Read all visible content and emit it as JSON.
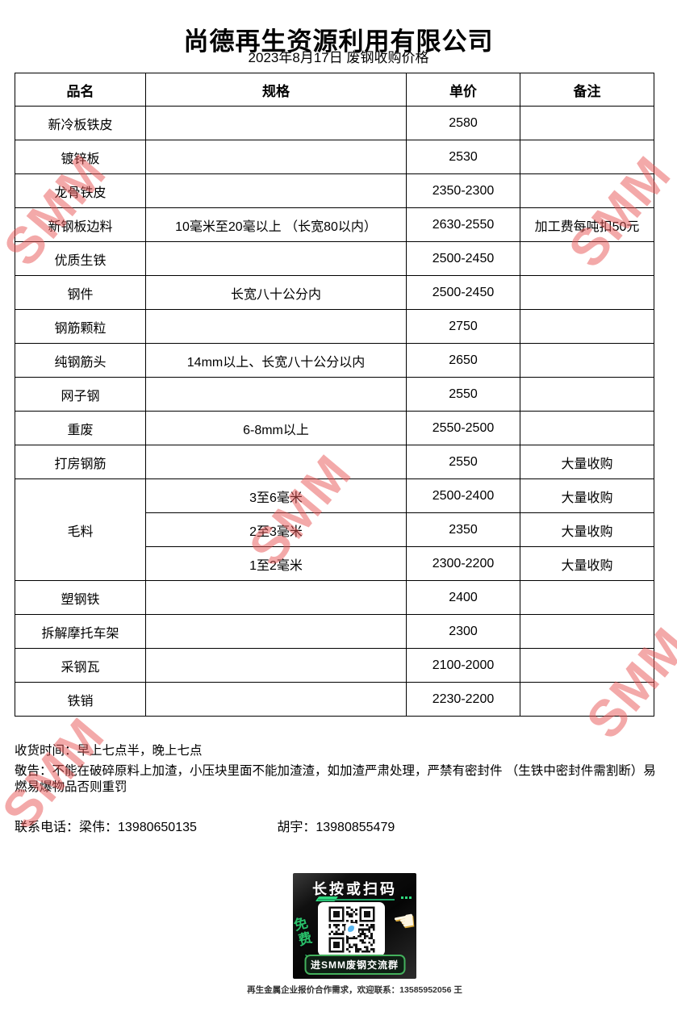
{
  "header": {
    "title": "尚德再生资源利用有限公司",
    "subtitle": "2023年8月17日 废钢收购价格"
  },
  "table": {
    "columns": [
      "品名",
      "规格",
      "单价",
      "备注"
    ],
    "rows": [
      {
        "name": "新冷板铁皮",
        "spec": "",
        "price": "2580",
        "note": ""
      },
      {
        "name": "镀锌板",
        "spec": "",
        "price": "2530",
        "note": ""
      },
      {
        "name": "龙骨铁皮",
        "spec": "",
        "price": "2350-2300",
        "note": ""
      },
      {
        "name": "新钢板边料",
        "spec": "10毫米至20毫以上 （长宽80以内）",
        "price": "2630-2550",
        "note": "加工费每吨扣50元"
      },
      {
        "name": "优质生铁",
        "spec": "",
        "price": "2500-2450",
        "note": ""
      },
      {
        "name": "钢件",
        "spec": "长宽八十公分内",
        "price": "2500-2450",
        "note": ""
      },
      {
        "name": "钢筋颗粒",
        "spec": "",
        "price": "2750",
        "note": ""
      },
      {
        "name": "纯钢筋头",
        "spec": "14mm以上、长宽八十公分以内",
        "price": "2650",
        "note": ""
      },
      {
        "name": "网子钢",
        "spec": "",
        "price": "2550",
        "note": ""
      },
      {
        "name": "重废",
        "spec": "6-8mm以上",
        "price": "2550-2500",
        "note": ""
      },
      {
        "name": "打房钢筋",
        "spec": "",
        "price": "2550",
        "note": "大量收购"
      },
      {
        "name": "毛料",
        "rowspan": 3,
        "spec": "3至6毫米",
        "price": "2500-2400",
        "note": "大量收购"
      },
      {
        "name": null,
        "spec": "2至3毫米",
        "price": "2350",
        "note": "大量收购"
      },
      {
        "name": null,
        "spec": "1至2毫米",
        "price": "2300-2200",
        "note": "大量收购"
      },
      {
        "name": "塑钢铁",
        "spec": "",
        "price": "2400",
        "note": ""
      },
      {
        "name": "拆解摩托车架",
        "spec": "",
        "price": "2300",
        "note": ""
      },
      {
        "name": "采钢瓦",
        "spec": "",
        "price": "2100-2000",
        "note": ""
      },
      {
        "name": "铁销",
        "spec": "",
        "price": "2230-2200",
        "note": ""
      }
    ]
  },
  "footer": {
    "pickup_time": "收货时间：早上七点半，晚上七点",
    "notice": "敬告：不能在破碎原料上加渣，小压块里面不能加渣渣，如加渣严肃处理，严禁有密封件 （生铁中密封件需割断）易燃易爆物品否则重罚",
    "contact_label": "联系电话：",
    "contact1": "梁伟：13980650135",
    "contact2": "胡宇：13980855479"
  },
  "qr_block": {
    "top_text": "长按或扫码",
    "free_label": "免费",
    "bottom_text": "进SMM废钢交流群",
    "caption": "再生金属企业报价合作需求，欢迎联系：13585952056 王"
  },
  "icons": {
    "pointing_hand": "☚",
    "free_arrow": "↘"
  },
  "watermark": {
    "text": "SMM",
    "color": "#E85555"
  },
  "colors": {
    "accent_green": "#2fd97f",
    "qr_background": "#0c0c0c"
  }
}
